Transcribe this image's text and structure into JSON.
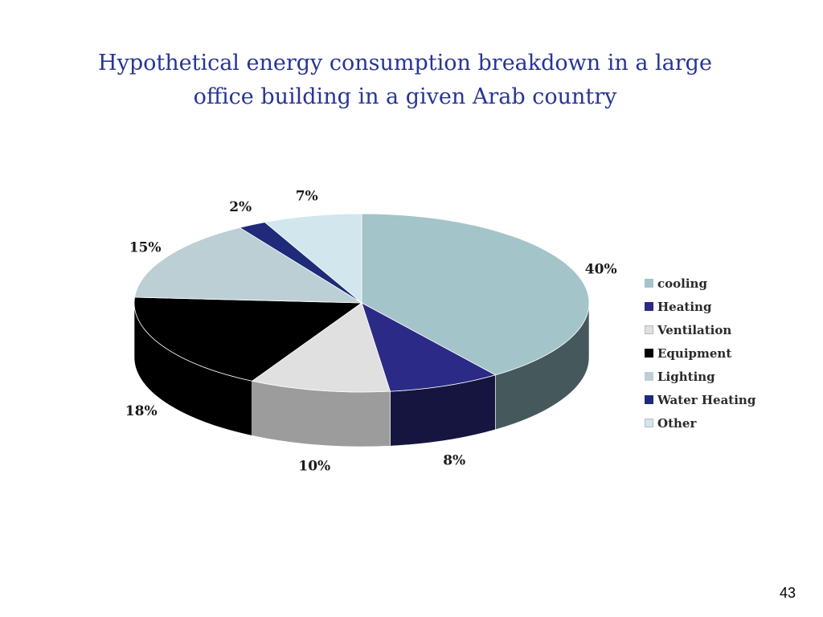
{
  "title_lines": [
    "Hypothetical energy consumption breakdown in a large",
    "office building in a given Arab country"
  ],
  "page_number": "43",
  "chart_data": {
    "type": "pie",
    "title": "Hypothetical energy consumption breakdown in a large office building in a given Arab country",
    "three_d": true,
    "legend_position": "right",
    "slices": [
      {
        "label": "cooling",
        "value": 40,
        "display": "40%",
        "color": "#a3c4c9",
        "side_color": "#45585b"
      },
      {
        "label": "Heating",
        "value": 8,
        "display": "8%",
        "color": "#2b2a86",
        "side_color": "#16153f"
      },
      {
        "label": "Ventilation",
        "value": 10,
        "display": "10%",
        "color": "#e0e0e0",
        "side_color": "#9c9c9c"
      },
      {
        "label": "Equipment",
        "value": 18,
        "display": "18%",
        "color": "#000000",
        "side_color": "#000000"
      },
      {
        "label": "Lighting",
        "value": 15,
        "display": "15%",
        "color": "#bccfd4",
        "side_color": "#6f7f83"
      },
      {
        "label": "Water Heating",
        "value": 2,
        "display": "2%",
        "color": "#1f2a7a",
        "side_color": "#11173f"
      },
      {
        "label": "Other",
        "value": 7,
        "display": "7%",
        "color": "#d1e6ed",
        "side_color": "#8aa0a7"
      }
    ]
  }
}
